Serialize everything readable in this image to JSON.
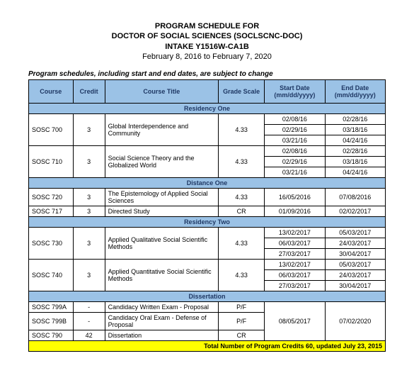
{
  "header": {
    "line1": "PROGRAM SCHEDULE FOR",
    "line2": "DOCTOR OF SOCIAL SCIENCES (SOCLSCNC-DOC)",
    "line3": "INTAKE Y1516W-CA1B",
    "dates": "February 8, 2016 to February 7, 2020"
  },
  "note": "Program schedules, including start and end dates, are subject to change",
  "columns": {
    "course": "Course",
    "credit": "Credit",
    "title": "Course Title",
    "grade": "Grade Scale",
    "start": "Start Date (mm/dd/yyyy)",
    "end": "End Date (mm/dd/yyyy)"
  },
  "sections": {
    "res1": "Residency One",
    "dist1": "Distance One",
    "res2": "Residency Two",
    "diss": "Dissertation"
  },
  "rows": {
    "r1": {
      "course": "SOSC 700",
      "credit": "3",
      "title": "Global Interdependence and Community",
      "grade": "4.33",
      "d1s": "02/08/16",
      "d1e": "02/28/16",
      "d2s": "02/29/16",
      "d2e": "03/18/16",
      "d3s": "03/21/16",
      "d3e": "04/24/16"
    },
    "r2": {
      "course": "SOSC 710",
      "credit": "3",
      "title": "Social Science Theory and the Globalized World",
      "grade": "4.33",
      "d1s": "02/08/16",
      "d1e": "02/28/16",
      "d2s": "02/29/16",
      "d2e": "03/18/16",
      "d3s": "03/21/16",
      "d3e": "04/24/16"
    },
    "r3": {
      "course": "SOSC 720",
      "credit": "3",
      "title": "The Epistemology of Applied Social Sciences",
      "grade": "4.33",
      "start": "16/05/2016",
      "end": "07/08/2016"
    },
    "r4": {
      "course": "SOSC 717",
      "credit": "3",
      "title": "Directed Study",
      "grade": "CR",
      "start": "01/09/2016",
      "end": "02/02/2017"
    },
    "r5": {
      "course": "SOSC 730",
      "credit": "3",
      "title": "Applied Qualitative Social Scientific Methods",
      "grade": "4.33",
      "d1s": "13/02/2017",
      "d1e": "05/03/2017",
      "d2s": "06/03/2017",
      "d2e": "24/03/2017",
      "d3s": "27/03/2017",
      "d3e": "30/04/2017"
    },
    "r6": {
      "course": "SOSC 740",
      "credit": "3",
      "title": "Applied Quantitative Social Scientific Methods",
      "grade": "4.33",
      "d1s": "13/02/2017",
      "d1e": "05/03/2017",
      "d2s": "06/03/2017",
      "d2e": "24/03/2017",
      "d3s": "27/03/2017",
      "d3e": "30/04/2017"
    },
    "r7": {
      "course": "SOSC 799A",
      "credit": "-",
      "title": "Candidacy Written Exam - Proposal",
      "grade": "P/F",
      "start": "",
      "end": ""
    },
    "r8": {
      "course": "SOSC 799B",
      "credit": "-",
      "title": "Candidacy Oral Exam - Defense of Proposal",
      "grade": "P/F",
      "start": "08/05/2017",
      "end": "07/02/2020"
    },
    "r9": {
      "course": "SOSC 790",
      "credit": "42",
      "title": "Dissertation",
      "grade": "CR",
      "start": "",
      "end": ""
    }
  },
  "footer": "Total Number of Program Credits 60, updated July 23, 2015"
}
